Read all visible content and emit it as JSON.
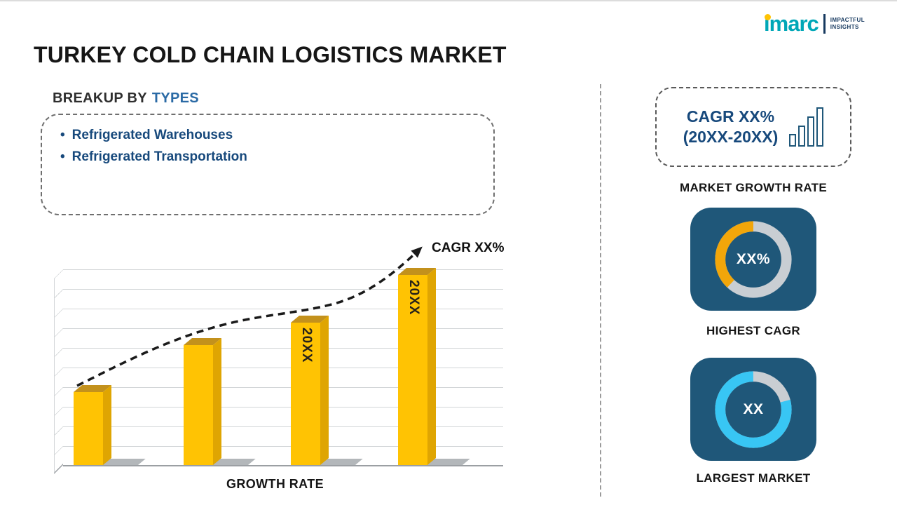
{
  "logo": {
    "brand": "imarc",
    "tagline_line1": "IMPACTFUL",
    "tagline_line2": "INSIGHTS",
    "brand_color": "#00A7B7",
    "dot_color": "#FFC303",
    "tagline_color": "#16395F"
  },
  "title": "TURKEY COLD CHAIN LOGISTICS MARKET",
  "breakup": {
    "heading_prefix": "BREAKUP BY",
    "heading_highlight": "TYPES",
    "items": [
      "Refrigerated Warehouses",
      "Refrigerated Transportation"
    ]
  },
  "chart_data": [
    {
      "type": "bar",
      "title": "",
      "xlabel": "GROWTH RATE",
      "ylabel": "",
      "categories": [
        "",
        "",
        "20XX",
        "20XX"
      ],
      "values": [
        26,
        43,
        51,
        68
      ],
      "y_axis_shown": false,
      "grid": true,
      "legend": false,
      "bar_color": "#FFC303",
      "annotation": "CAGR XX%",
      "annotation_style": "dashed rising arrow"
    },
    {
      "type": "pie",
      "subtype": "donut",
      "title": "HIGHEST CAGR",
      "center_label": "XX%",
      "slices": [
        {
          "name": "highlight",
          "fraction": 0.38,
          "color": "#F2A60A"
        },
        {
          "name": "remainder",
          "fraction": 0.62,
          "color": "#C9CED3"
        }
      ],
      "arc_rotate_deg": -227,
      "bg_color": "#1F5779"
    },
    {
      "type": "pie",
      "subtype": "donut",
      "title": "LARGEST MARKET",
      "center_label": "XX",
      "slices": [
        {
          "name": "highlight",
          "fraction": 0.79,
          "color": "#38C6F4"
        },
        {
          "name": "remainder",
          "fraction": 0.21,
          "color": "#C9CED3"
        }
      ],
      "arc_rotate_deg": -15,
      "bg_color": "#1F5779"
    }
  ],
  "sidebar": {
    "growth_box": {
      "line1": "CAGR XX%",
      "line2": "(20XX-20XX)",
      "label": "MARKET GROWTH RATE"
    }
  }
}
